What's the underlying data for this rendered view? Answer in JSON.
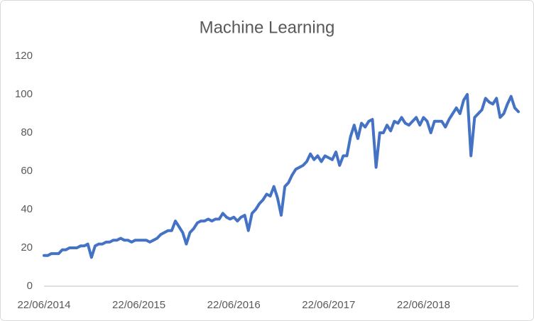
{
  "chart_data": {
    "type": "line",
    "title": "Machine Learning",
    "categories": [
      "22/06/2014",
      null,
      null,
      null,
      null,
      null,
      null,
      null,
      null,
      null,
      null,
      null,
      null,
      null,
      null,
      null,
      null,
      null,
      null,
      null,
      null,
      null,
      null,
      null,
      null,
      null,
      "22/06/2015",
      null,
      null,
      null,
      null,
      null,
      null,
      null,
      null,
      null,
      null,
      null,
      null,
      null,
      null,
      null,
      null,
      null,
      null,
      null,
      null,
      null,
      null,
      null,
      null,
      null,
      "22/06/2016",
      null,
      null,
      null,
      null,
      null,
      null,
      null,
      null,
      null,
      null,
      null,
      null,
      null,
      null,
      null,
      null,
      null,
      null,
      null,
      null,
      null,
      null,
      null,
      null,
      null,
      "22/06/2017",
      null,
      null,
      null,
      null,
      null,
      null,
      null,
      null,
      null,
      null,
      null,
      null,
      null,
      null,
      null,
      null,
      null,
      null,
      null,
      null,
      null,
      null,
      null,
      null,
      null,
      "22/06/2018",
      null,
      null,
      null,
      null,
      null,
      null,
      null,
      null,
      null,
      null,
      null,
      null,
      null,
      null,
      null,
      null,
      null,
      null,
      null,
      null,
      null,
      null,
      null,
      null,
      null,
      null
    ],
    "values": [
      16,
      16,
      17,
      17,
      17,
      19,
      19,
      20,
      20,
      20,
      21,
      21,
      22,
      15,
      21,
      22,
      22,
      23,
      23,
      24,
      24,
      25,
      24,
      24,
      23,
      24,
      24,
      24,
      24,
      23,
      24,
      25,
      27,
      28,
      29,
      29,
      34,
      31,
      28,
      22,
      28,
      30,
      33,
      34,
      34,
      35,
      34,
      35,
      35,
      38,
      36,
      35,
      36,
      34,
      36,
      37,
      29,
      38,
      40,
      43,
      45,
      48,
      47,
      52,
      46,
      37,
      52,
      54,
      58,
      61,
      62,
      63,
      65,
      69,
      66,
      68,
      65,
      68,
      67,
      66,
      70,
      63,
      68,
      68,
      78,
      84,
      77,
      85,
      83,
      86,
      87,
      62,
      80,
      80,
      84,
      81,
      86,
      85,
      88,
      85,
      84,
      86,
      88,
      84,
      88,
      86,
      80,
      86,
      86,
      86,
      83,
      87,
      90,
      93,
      90,
      97,
      100,
      68,
      88,
      90,
      92,
      98,
      96,
      95,
      98,
      88,
      90,
      95,
      99,
      93,
      91
    ],
    "color": "#4472c4",
    "ylim": [
      0,
      120
    ],
    "yticks": [
      0,
      20,
      40,
      60,
      80,
      100,
      120
    ],
    "grid": false
  }
}
